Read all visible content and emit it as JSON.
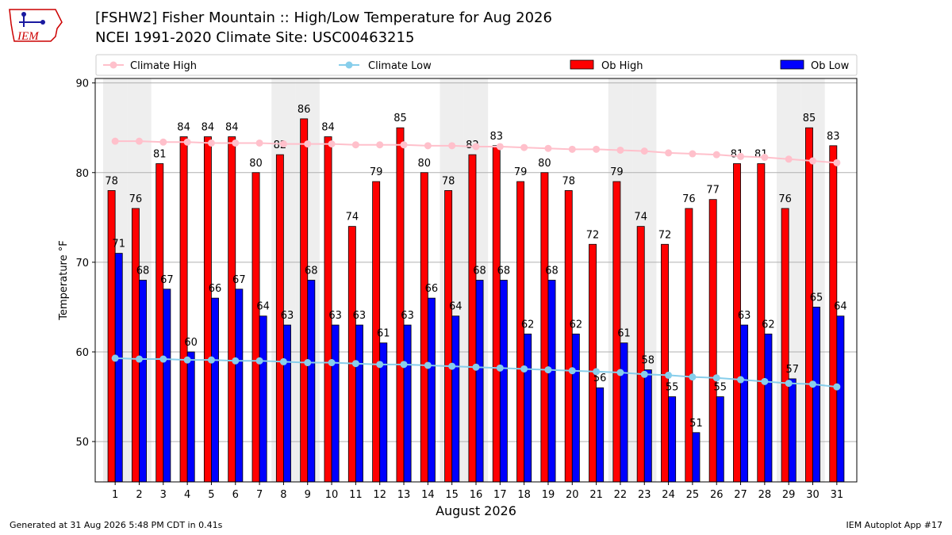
{
  "logo": {
    "text": "IEM",
    "color": "#cc0000"
  },
  "title": {
    "line1": "[FSHW2] Fisher Mountain :: High/Low Temperature for Aug 2026",
    "line2": "NCEI 1991-2020 Climate Site: USC00463215"
  },
  "footer": {
    "left": "Generated at 31 Aug 2026 5:48 PM CDT in 0.41s",
    "right": "IEM Autoplot App #17"
  },
  "colors": {
    "ob_high": "#ff0000",
    "ob_low": "#0000ff",
    "climate_high": "#ffc0cb",
    "climate_low": "#87ceeb",
    "weekend_shade": "#eeeeee"
  },
  "chart_data": {
    "type": "bar",
    "xlabel": "August 2026",
    "ylabel": "Temperature °F",
    "ylim": [
      45.5,
      90.5
    ],
    "yticks": [
      50,
      60,
      70,
      80,
      90
    ],
    "grid": "horizontal",
    "legend_position": "top",
    "categories": [
      "1",
      "2",
      "3",
      "4",
      "5",
      "6",
      "7",
      "8",
      "9",
      "10",
      "11",
      "12",
      "13",
      "14",
      "15",
      "16",
      "17",
      "18",
      "19",
      "20",
      "21",
      "22",
      "23",
      "24",
      "25",
      "26",
      "27",
      "28",
      "29",
      "30",
      "31"
    ],
    "shaded_days": [
      1,
      2,
      8,
      9,
      15,
      16,
      22,
      23,
      29,
      30
    ],
    "series": [
      {
        "name": "Ob High",
        "kind": "bar",
        "color": "#ff0000",
        "values": [
          78,
          76,
          81,
          84,
          84,
          84,
          80,
          82,
          86,
          84,
          74,
          79,
          85,
          80,
          78,
          82,
          83,
          79,
          80,
          78,
          72,
          79,
          74,
          72,
          76,
          77,
          81,
          81,
          76,
          85,
          83
        ]
      },
      {
        "name": "Ob Low",
        "kind": "bar",
        "color": "#0000ff",
        "values": [
          71,
          68,
          67,
          60,
          66,
          67,
          64,
          63,
          68,
          63,
          63,
          61,
          63,
          66,
          64,
          68,
          68,
          62,
          68,
          62,
          56,
          61,
          58,
          55,
          51,
          55,
          63,
          62,
          57,
          65,
          64
        ]
      },
      {
        "name": "Climate High",
        "kind": "line",
        "color": "#ffc0cb",
        "values": [
          83.5,
          83.5,
          83.4,
          83.4,
          83.3,
          83.3,
          83.3,
          83.2,
          83.2,
          83.2,
          83.1,
          83.1,
          83.1,
          83.0,
          83.0,
          82.9,
          82.9,
          82.8,
          82.7,
          82.6,
          82.6,
          82.5,
          82.4,
          82.2,
          82.1,
          82.0,
          81.8,
          81.7,
          81.5,
          81.3,
          81.1
        ]
      },
      {
        "name": "Climate Low",
        "kind": "line",
        "color": "#87ceeb",
        "values": [
          59.3,
          59.2,
          59.2,
          59.1,
          59.1,
          59.0,
          59.0,
          58.9,
          58.8,
          58.8,
          58.7,
          58.6,
          58.6,
          58.5,
          58.4,
          58.3,
          58.2,
          58.1,
          58.0,
          57.9,
          57.8,
          57.7,
          57.5,
          57.4,
          57.2,
          57.1,
          56.9,
          56.7,
          56.5,
          56.4,
          56.1
        ]
      }
    ],
    "legend": [
      "Climate High",
      "Climate Low",
      "Ob High",
      "Ob Low"
    ]
  }
}
